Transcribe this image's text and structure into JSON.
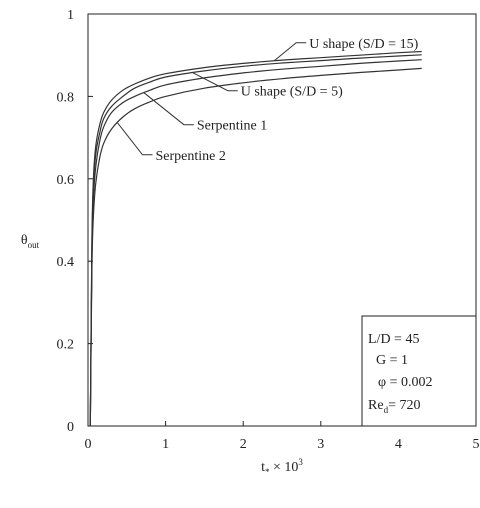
{
  "chart_data": {
    "type": "line",
    "title": "",
    "xlabel": {
      "main": "t",
      "sub": "*",
      "rest": " × 10",
      "sup": "3"
    },
    "ylabel": {
      "main": "θ",
      "sub": "out"
    },
    "xlim": [
      0,
      5
    ],
    "ylim": [
      0,
      1
    ],
    "xticks": [
      "0",
      "1",
      "2",
      "3",
      "4",
      "5"
    ],
    "yticks": [
      "0",
      "0.2",
      "0.4",
      "0.6",
      "0.8",
      "1"
    ],
    "grid": false,
    "legend": "none",
    "series": [
      {
        "name": "U shape (S/D = 15)",
        "x": [
          0.03,
          0.05,
          0.07,
          0.1,
          0.15,
          0.2,
          0.3,
          0.45,
          0.6,
          0.8,
          1.0,
          1.5,
          2.0,
          2.5,
          3.0,
          3.5,
          4.0,
          4.3
        ],
        "y": [
          0.0,
          0.45,
          0.6,
          0.68,
          0.73,
          0.76,
          0.79,
          0.815,
          0.83,
          0.845,
          0.855,
          0.87,
          0.88,
          0.888,
          0.894,
          0.9,
          0.906,
          0.909
        ]
      },
      {
        "name": "U shape (S/D = 5)",
        "x": [
          0.03,
          0.05,
          0.07,
          0.1,
          0.15,
          0.2,
          0.3,
          0.45,
          0.6,
          0.8,
          1.0,
          1.5,
          2.0,
          2.5,
          3.0,
          3.5,
          4.0,
          4.3
        ],
        "y": [
          0.0,
          0.43,
          0.58,
          0.66,
          0.71,
          0.745,
          0.775,
          0.8,
          0.82,
          0.835,
          0.847,
          0.862,
          0.873,
          0.881,
          0.887,
          0.893,
          0.898,
          0.901
        ]
      },
      {
        "name": "Serpentine 1",
        "x": [
          0.03,
          0.05,
          0.07,
          0.1,
          0.15,
          0.2,
          0.3,
          0.45,
          0.6,
          0.8,
          1.0,
          1.5,
          2.0,
          2.5,
          3.0,
          3.5,
          4.0,
          4.3
        ],
        "y": [
          0.0,
          0.41,
          0.55,
          0.63,
          0.69,
          0.725,
          0.76,
          0.785,
          0.8,
          0.815,
          0.828,
          0.845,
          0.857,
          0.866,
          0.873,
          0.88,
          0.886,
          0.889
        ]
      },
      {
        "name": "Serpentine 2",
        "x": [
          0.03,
          0.05,
          0.07,
          0.1,
          0.15,
          0.2,
          0.3,
          0.45,
          0.6,
          0.8,
          1.0,
          1.5,
          2.0,
          2.5,
          3.0,
          3.5,
          4.0,
          4.3
        ],
        "y": [
          0.0,
          0.38,
          0.51,
          0.59,
          0.65,
          0.685,
          0.72,
          0.75,
          0.77,
          0.787,
          0.8,
          0.82,
          0.833,
          0.843,
          0.851,
          0.858,
          0.864,
          0.868
        ]
      }
    ],
    "annotations": [
      {
        "text": "U shape (S/D = 15)",
        "series": 0,
        "at_x": 2.4
      },
      {
        "text": "U shape (S/D = 5)",
        "series": 1,
        "at_x": 1.35
      },
      {
        "text": "Serpentine 1",
        "series": 2,
        "at_x": 0.72
      },
      {
        "text": "Serpentine 2",
        "series": 3,
        "at_x": 0.38
      }
    ],
    "inset": {
      "placement": "bottom-right",
      "lines": [
        {
          "text": "L/D = 45"
        },
        {
          "text": "G = 1"
        },
        {
          "text": "φ = 0.002"
        },
        {
          "main": "Re",
          "sub": "d",
          "rest": "= 720"
        }
      ]
    }
  }
}
